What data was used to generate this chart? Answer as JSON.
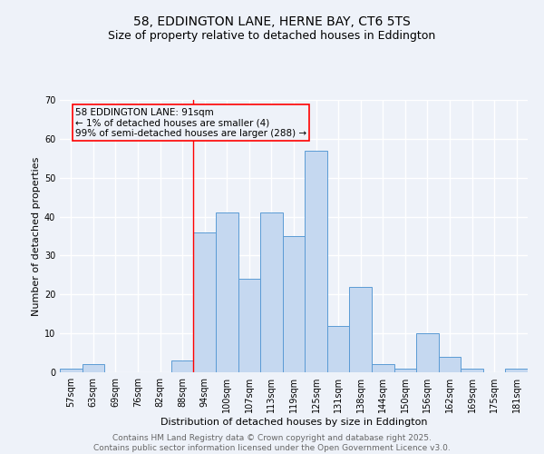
{
  "title": "58, EDDINGTON LANE, HERNE BAY, CT6 5TS",
  "subtitle": "Size of property relative to detached houses in Eddington",
  "xlabel": "Distribution of detached houses by size in Eddington",
  "ylabel": "Number of detached properties",
  "categories": [
    "57sqm",
    "63sqm",
    "69sqm",
    "76sqm",
    "82sqm",
    "88sqm",
    "94sqm",
    "100sqm",
    "107sqm",
    "113sqm",
    "119sqm",
    "125sqm",
    "131sqm",
    "138sqm",
    "144sqm",
    "150sqm",
    "156sqm",
    "162sqm",
    "169sqm",
    "175sqm",
    "181sqm"
  ],
  "values": [
    1,
    2,
    0,
    0,
    0,
    3,
    36,
    41,
    24,
    41,
    35,
    57,
    12,
    22,
    2,
    1,
    10,
    4,
    1,
    0,
    1
  ],
  "bar_color": "#c5d8f0",
  "bar_edge_color": "#5b9bd5",
  "vline_x": 5.5,
  "vline_color": "red",
  "annotation_text": "58 EDDINGTON LANE: 91sqm\n← 1% of detached houses are smaller (4)\n99% of semi-detached houses are larger (288) →",
  "ylim": [
    0,
    70
  ],
  "yticks": [
    0,
    10,
    20,
    30,
    40,
    50,
    60,
    70
  ],
  "footer_text": "Contains HM Land Registry data © Crown copyright and database right 2025.\nContains public sector information licensed under the Open Government Licence v3.0.",
  "bg_color": "#eef2f9",
  "grid_color": "#ffffff",
  "title_fontsize": 10,
  "subtitle_fontsize": 9,
  "axis_label_fontsize": 8,
  "tick_fontsize": 7,
  "footer_fontsize": 6.5,
  "annotation_fontsize": 7.5
}
